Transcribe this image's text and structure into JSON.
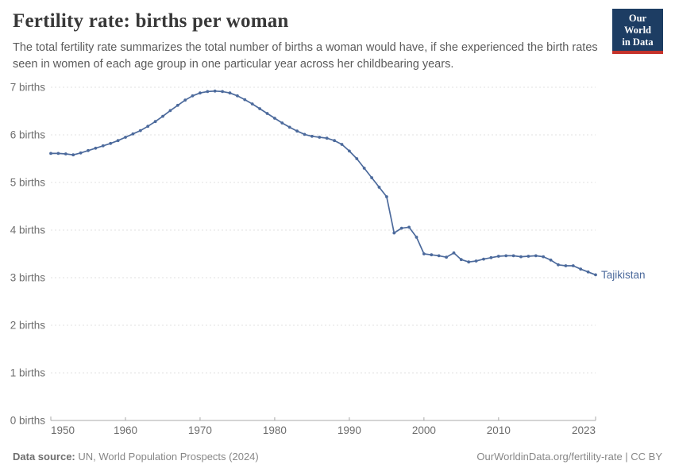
{
  "header": {
    "title": "Fertility rate: births per woman",
    "subtitle": "The total fertility rate summarizes the total number of births a woman would have, if she experienced the birth rates seen in women of each age group in one particular year across her childbearing years.",
    "logo_line1": "Our World",
    "logo_line2": "in Data"
  },
  "chart_data": {
    "type": "line",
    "title": "Fertility rate: births per woman",
    "xlabel": "",
    "ylabel": "births per woman",
    "xlim": [
      1950,
      2023
    ],
    "ylim": [
      0,
      7
    ],
    "grid": "horizontal-dashed",
    "legend_position": "end-of-line-label",
    "x_ticks": [
      1950,
      1960,
      1970,
      1980,
      1990,
      2000,
      2010,
      2023
    ],
    "y_ticks": [
      0,
      1,
      2,
      3,
      4,
      5,
      6,
      7
    ],
    "y_tick_labels": [
      "0 births",
      "1 births",
      "2 births",
      "3 births",
      "4 births",
      "5 births",
      "6 births",
      "7 births"
    ],
    "series": [
      {
        "name": "Tajikistan",
        "color": "#4c6a9c",
        "x": [
          1950,
          1951,
          1952,
          1953,
          1954,
          1955,
          1956,
          1957,
          1958,
          1959,
          1960,
          1961,
          1962,
          1963,
          1964,
          1965,
          1966,
          1967,
          1968,
          1969,
          1970,
          1971,
          1972,
          1973,
          1974,
          1975,
          1976,
          1977,
          1978,
          1979,
          1980,
          1981,
          1982,
          1983,
          1984,
          1985,
          1986,
          1987,
          1988,
          1989,
          1990,
          1991,
          1992,
          1993,
          1994,
          1995,
          1996,
          1997,
          1998,
          1999,
          2000,
          2001,
          2002,
          2003,
          2004,
          2005,
          2006,
          2007,
          2008,
          2009,
          2010,
          2011,
          2012,
          2013,
          2014,
          2015,
          2016,
          2017,
          2018,
          2019,
          2020,
          2021,
          2022,
          2023
        ],
        "values": [
          5.61,
          5.61,
          5.6,
          5.58,
          5.62,
          5.67,
          5.72,
          5.77,
          5.82,
          5.88,
          5.95,
          6.02,
          6.09,
          6.18,
          6.28,
          6.39,
          6.51,
          6.62,
          6.73,
          6.82,
          6.88,
          6.91,
          6.92,
          6.91,
          6.88,
          6.82,
          6.74,
          6.65,
          6.55,
          6.45,
          6.35,
          6.25,
          6.16,
          6.08,
          6.01,
          5.97,
          5.95,
          5.93,
          5.88,
          5.8,
          5.66,
          5.5,
          5.3,
          5.1,
          4.9,
          4.7,
          3.94,
          4.04,
          4.06,
          3.85,
          3.5,
          3.48,
          3.46,
          3.43,
          3.52,
          3.38,
          3.33,
          3.35,
          3.39,
          3.42,
          3.45,
          3.46,
          3.46,
          3.44,
          3.45,
          3.46,
          3.44,
          3.37,
          3.27,
          3.25,
          3.25,
          3.18,
          3.12,
          3.06
        ]
      }
    ],
    "end_label": "Tajikistan"
  },
  "footer": {
    "source_label": "Data source:",
    "source_text": " UN, World Population Prospects (2024)",
    "credit": "OurWorldinData.org/fertility-rate | CC BY"
  },
  "colors": {
    "line": "#4c6a9c",
    "grid": "#e0e0e0",
    "axis": "#a8a8a8",
    "tick_text": "#6e6e6e",
    "logo_navy": "#1d3d63",
    "logo_red": "#c5332b"
  }
}
